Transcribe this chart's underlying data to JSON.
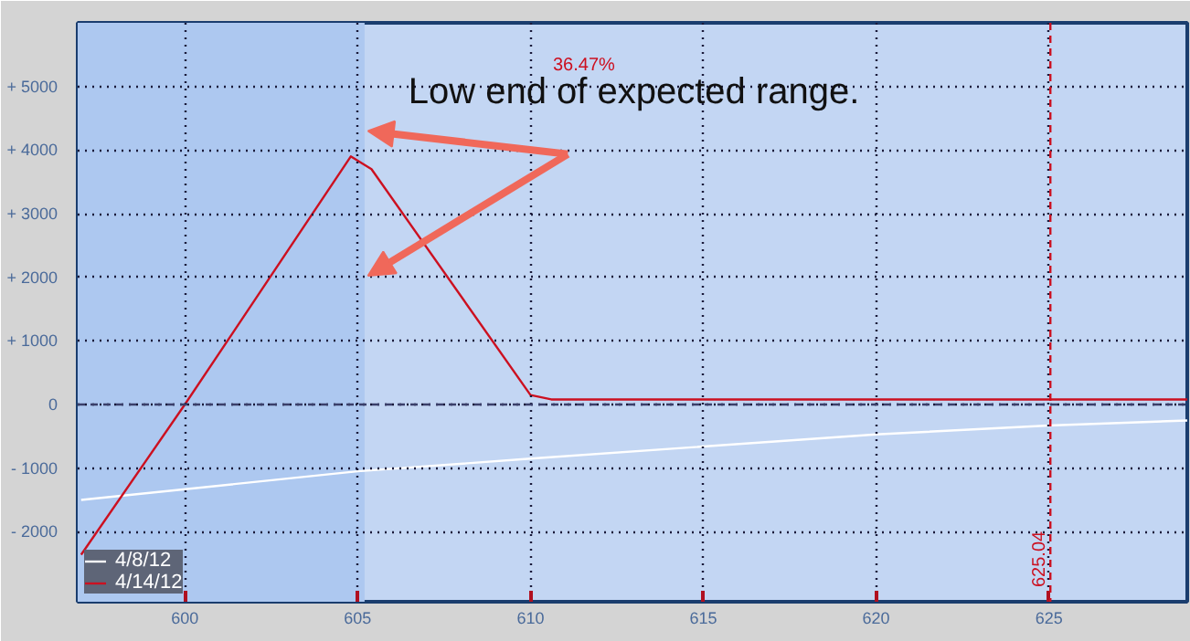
{
  "chart_data": {
    "type": "line",
    "x": [
      597,
      600,
      604.8,
      605.4,
      610,
      610.6,
      629
    ],
    "series": [
      {
        "name": "4/8/12",
        "color": "#ffffff",
        "x": [
          597,
          605,
          610,
          620,
          625,
          629
        ],
        "values": [
          -1500,
          -1050,
          -850,
          -470,
          -330,
          -250
        ]
      },
      {
        "name": "4/14/12",
        "color": "#cc1020",
        "values": [
          -2360,
          0,
          3900,
          3700,
          150,
          80,
          80
        ]
      }
    ],
    "xlim": [
      596.9,
      629
    ],
    "ylim": [
      -3100,
      6000
    ],
    "xticks": [
      600,
      605,
      610,
      615,
      620,
      625
    ],
    "yticks": [
      {
        "value": -2000,
        "label": "- 2000"
      },
      {
        "value": -1000,
        "label": "- 1000"
      },
      0,
      {
        "value": 1000,
        "label": "+ 1000"
      },
      {
        "value": 2000,
        "label": "+ 2000"
      },
      {
        "value": 3000,
        "label": "+ 3000"
      },
      {
        "value": 4000,
        "label": "+ 4000"
      },
      {
        "value": 5000,
        "label": "+ 5000"
      }
    ],
    "grid": true,
    "legend": "bottom left",
    "marker": "none",
    "line_style": "solid",
    "ref_lines": [
      {
        "axis": "x",
        "value": 625.04,
        "label": "625.04",
        "color": "#cc1020",
        "line_style": "dashed"
      },
      {
        "axis": "y",
        "value": 0,
        "color": "#3a3f6a",
        "line_style": "dashed"
      }
    ],
    "bands": [
      {
        "axis": "x",
        "from": 596.9,
        "to": 605.2,
        "color": "#adc8f0"
      }
    ],
    "annotations": [
      "36.47%",
      {
        "text": "Low end of expected range.",
        "x": 605.3,
        "y": 4300
      }
    ]
  }
}
